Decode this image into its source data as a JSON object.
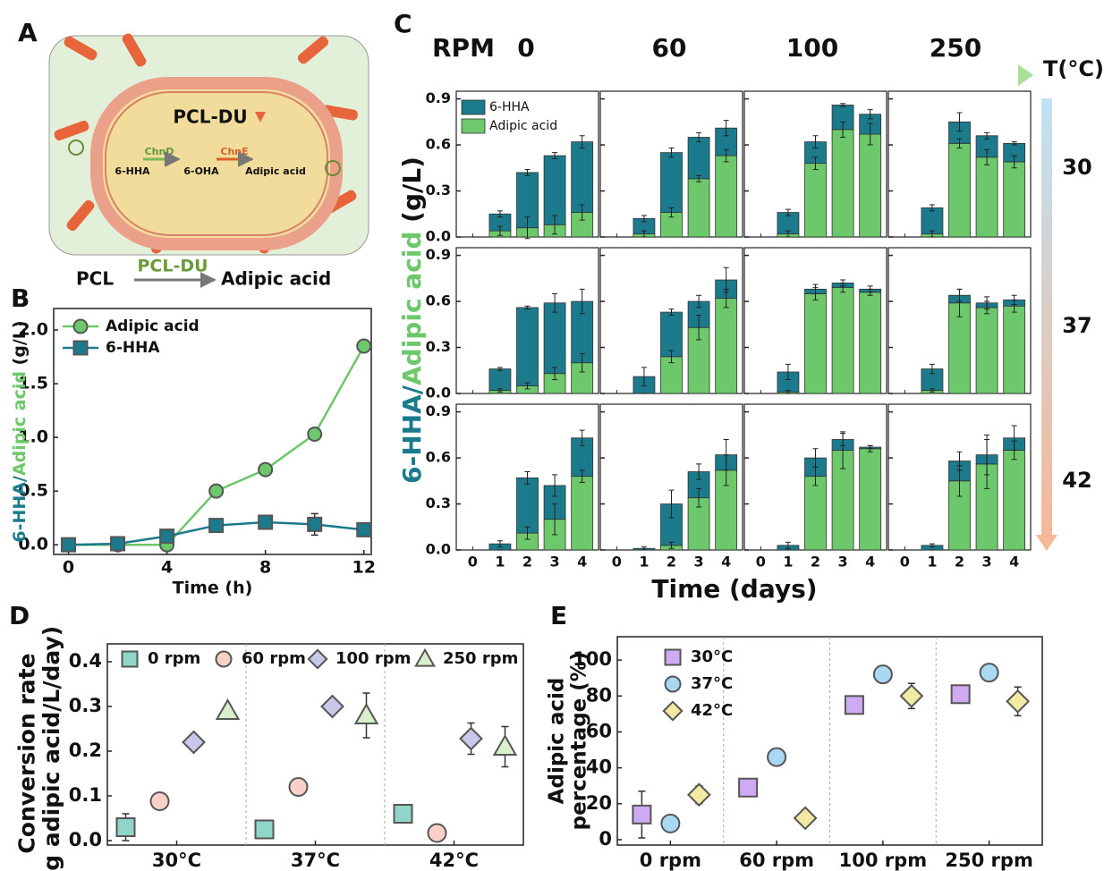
{
  "diagram": {
    "label": "A",
    "enzyme": "PCL-DU",
    "enzyme_1": "ChnD",
    "enzyme_2": "ChnE",
    "compounds": [
      "6-HHA",
      "6-OHA",
      "Adipic acid"
    ],
    "reaction": {
      "substrate": "PCL",
      "catalyst": "PCL-DU",
      "product": "Adipic acid"
    }
  },
  "chart_data": [
    {
      "type": "line",
      "label": "B",
      "xlabel": "Time (h)",
      "ylabel": [
        {
          "text": "6-HHA",
          "color": "#1b7a8c"
        },
        {
          "text": "/",
          "color": "#1b7a8c"
        },
        {
          "text": "Adipic acid",
          "color": "#6cc86a"
        },
        {
          "text": " (g/L)",
          "color": "#111111"
        }
      ],
      "x": [
        0,
        2,
        4,
        6,
        8,
        10,
        12
      ],
      "xlim": [
        -0.6,
        12.3
      ],
      "xticks": [
        0,
        4,
        8,
        12
      ],
      "ylim": [
        -0.09,
        2.2
      ],
      "yticks": [
        {
          "value": 0,
          "label": "0.0"
        },
        {
          "value": 0.5,
          "label": "0.5"
        },
        {
          "value": 1,
          "label": "1.0"
        },
        {
          "value": 1.5,
          "label": "1.5"
        },
        {
          "value": 2,
          "label": "2.0"
        }
      ],
      "legend": "upper left",
      "series": [
        {
          "name": "Adipic acid",
          "color": "#6cc86a",
          "marker": "circle",
          "values": [
            0,
            0,
            0,
            0.5,
            0.7,
            1.03,
            1.85
          ],
          "errors": [
            0.02,
            0.05,
            0.03,
            0.05,
            0.03,
            0.05,
            0.03
          ]
        },
        {
          "name": "6-HHA",
          "color": "#1b7a8c",
          "marker": "square",
          "values": [
            0,
            0.01,
            0.08,
            0.18,
            0.21,
            0.19,
            0.14
          ],
          "errors": [
            0.02,
            0.05,
            0.05,
            0.06,
            0.04,
            0.1,
            0.06
          ]
        }
      ]
    },
    {
      "type": "stacked_bar_grid",
      "label": "C",
      "xlabel": "Time (days)",
      "ylabel": [
        {
          "text": "6-HHA",
          "color": "#1b7a8c"
        },
        {
          "text": "/",
          "color": "#1b7a8c"
        },
        {
          "text": "Adipic acid",
          "color": "#6cc86a"
        },
        {
          "text": " (g/L)",
          "color": "#111111"
        }
      ],
      "column_title": "RPM",
      "columns": [
        "0",
        "60",
        "100",
        "250"
      ],
      "row_title": "T(°C)",
      "rows": [
        "30",
        "37",
        "42"
      ],
      "x": [
        0,
        1,
        2,
        3,
        4
      ],
      "xlim": [
        -0.6,
        4.6
      ],
      "xticks": [
        0,
        1,
        2,
        3,
        4
      ],
      "ylim": [
        0,
        0.95
      ],
      "yticks": [
        {
          "value": 0,
          "label": "0.0"
        },
        {
          "value": 0.3,
          "label": "0.3"
        },
        {
          "value": 0.6,
          "label": "0.6"
        },
        {
          "value": 0.9,
          "label": "0.9"
        }
      ],
      "legend": "upper left",
      "series": [
        {
          "name": "6-HHA",
          "color": "#1b7a8c"
        },
        {
          "name": "Adipic acid",
          "color": "#6cc86a"
        }
      ],
      "panels": [
        {
          "series": [
            {
              "values": [
                0,
                0.11,
                0.36,
                0.45,
                0.46
              ],
              "errors": [
                0,
                0.02,
                0.02,
                0.02,
                0.04
              ]
            },
            {
              "values": [
                0,
                0.04,
                0.06,
                0.08,
                0.16
              ],
              "errors": [
                0,
                0.03,
                0.07,
                0.06,
                0.05
              ]
            }
          ]
        },
        {
          "series": [
            {
              "values": [
                0,
                0.1,
                0.39,
                0.27,
                0.18
              ],
              "errors": [
                0,
                0.02,
                0.03,
                0.03,
                0.05
              ]
            },
            {
              "values": [
                0,
                0.02,
                0.16,
                0.38,
                0.53
              ],
              "errors": [
                0,
                0.02,
                0.03,
                0.02,
                0.04
              ]
            }
          ]
        },
        {
          "series": [
            {
              "values": [
                0,
                0.14,
                0.14,
                0.16,
                0.13
              ],
              "errors": [
                0,
                0.02,
                0.04,
                0.01,
                0.03
              ]
            },
            {
              "values": [
                0,
                0.02,
                0.48,
                0.7,
                0.67
              ],
              "errors": [
                0,
                0.02,
                0.04,
                0.05,
                0.07
              ]
            }
          ]
        },
        {
          "series": [
            {
              "values": [
                0,
                0.17,
                0.14,
                0.14,
                0.12
              ],
              "errors": [
                0,
                0.02,
                0.06,
                0.02,
                0.01
              ]
            },
            {
              "values": [
                0,
                0.02,
                0.61,
                0.52,
                0.49
              ],
              "errors": [
                0,
                0.02,
                0.03,
                0.05,
                0.04
              ]
            }
          ]
        },
        {
          "series": [
            {
              "values": [
                0,
                0.14,
                0.51,
                0.46,
                0.4
              ],
              "errors": [
                0,
                0.01,
                0.01,
                0.06,
                0.08
              ]
            },
            {
              "values": [
                0,
                0.02,
                0.05,
                0.13,
                0.2
              ],
              "errors": [
                0,
                0.01,
                0.02,
                0.04,
                0.06
              ]
            }
          ]
        },
        {
          "series": [
            {
              "values": [
                0,
                0.11,
                0.29,
                0.17,
                0.12
              ],
              "errors": [
                0,
                0.06,
                0.02,
                0.04,
                0.08
              ]
            },
            {
              "values": [
                0,
                0,
                0.24,
                0.43,
                0.62
              ],
              "errors": [
                0,
                0,
                0.04,
                0.08,
                0.06
              ]
            }
          ]
        },
        {
          "series": [
            {
              "values": [
                0,
                0.13,
                0.03,
                0.03,
                0.02
              ],
              "errors": [
                0,
                0.05,
                0.03,
                0.02,
                0.02
              ]
            },
            {
              "values": [
                0,
                0.01,
                0.65,
                0.69,
                0.66
              ],
              "errors": [
                0,
                0.01,
                0.04,
                0.03,
                0.02
              ]
            }
          ]
        },
        {
          "series": [
            {
              "values": [
                0,
                0.14,
                0.05,
                0.03,
                0.04
              ],
              "errors": [
                0,
                0.03,
                0.04,
                0.04,
                0.03
              ]
            },
            {
              "values": [
                0,
                0.02,
                0.59,
                0.56,
                0.57
              ],
              "errors": [
                0,
                0.01,
                0.09,
                0.04,
                0.04
              ]
            }
          ]
        },
        {
          "series": [
            {
              "values": [
                0,
                0.04,
                0.36,
                0.22,
                0.25
              ],
              "errors": [
                0,
                0.02,
                0.04,
                0.07,
                0.05
              ]
            },
            {
              "values": [
                0,
                0,
                0.11,
                0.2,
                0.48
              ],
              "errors": [
                0,
                0,
                0.04,
                0.1,
                0.04
              ]
            }
          ]
        },
        {
          "series": [
            {
              "values": [
                0,
                0.01,
                0.27,
                0.17,
                0.1
              ],
              "errors": [
                0,
                0.01,
                0.09,
                0.05,
                0.1
              ]
            },
            {
              "values": [
                0,
                0,
                0.03,
                0.34,
                0.52
              ],
              "errors": [
                0,
                0,
                0.02,
                0.06,
                0.1
              ]
            }
          ]
        },
        {
          "series": [
            {
              "values": [
                0,
                0.03,
                0.12,
                0.07,
                0.01
              ],
              "errors": [
                0,
                0.02,
                0.06,
                0.04,
                0.01
              ]
            },
            {
              "values": [
                0,
                0,
                0.48,
                0.65,
                0.66
              ],
              "errors": [
                0,
                0,
                0.06,
                0.12,
                0.02
              ]
            }
          ]
        },
        {
          "series": [
            {
              "values": [
                0,
                0.03,
                0.13,
                0.06,
                0.08
              ],
              "errors": [
                0,
                0.01,
                0.06,
                0.13,
                0.08
              ]
            },
            {
              "values": [
                0,
                0,
                0.45,
                0.56,
                0.65
              ],
              "errors": [
                0,
                0,
                0.1,
                0.16,
                0.06
              ]
            }
          ]
        }
      ]
    },
    {
      "type": "scatter",
      "label": "D",
      "ylabel": [
        "Conversion rate",
        "(g adipic acid/L/day)"
      ],
      "categories": [
        "30°C",
        "37°C",
        "42°C"
      ],
      "ylim": [
        -0.01,
        0.44
      ],
      "yticks": [
        {
          "value": 0,
          "label": "0.0"
        },
        0.1,
        0.2,
        0.3,
        0.4
      ],
      "legend": "top",
      "series": [
        {
          "name": "0 rpm",
          "color": "#8fd6c8",
          "marker": "square",
          "values": [
            0.03,
            0.025,
            0.06
          ],
          "errors": [
            0.03,
            0.02,
            0.01
          ]
        },
        {
          "name": "60 rpm",
          "color": "#f8d0c8",
          "marker": "circle",
          "values": [
            0.088,
            0.12,
            0.017
          ],
          "errors": [
            0.01,
            0.005,
            0.015
          ]
        },
        {
          "name": "100 rpm",
          "color": "#c8c8ea",
          "marker": "diamond",
          "values": [
            0.22,
            0.3,
            0.228
          ],
          "errors": [
            0.01,
            0.01,
            0.035
          ]
        },
        {
          "name": "250 rpm",
          "color": "#daf0cc",
          "marker": "triangle",
          "values": [
            0.29,
            0.28,
            0.21
          ],
          "errors": [
            0.01,
            0.05,
            0.045
          ]
        }
      ]
    },
    {
      "type": "scatter",
      "label": "E",
      "ylabel": [
        "Adipic acid",
        "percentage (%)"
      ],
      "categories": [
        "0 rpm",
        "60 rpm",
        "100 rpm",
        "250 rpm"
      ],
      "ylim": [
        -3,
        113
      ],
      "yticks": [
        0,
        20,
        40,
        60,
        80,
        100
      ],
      "legend": "upper left",
      "series": [
        {
          "name": "30°C",
          "color": "#cdaaf2",
          "marker": "square",
          "values": [
            14,
            29,
            75,
            81
          ],
          "errors": [
            13,
            2,
            3,
            5
          ]
        },
        {
          "name": "37°C",
          "color": "#a9d9f2",
          "marker": "circle",
          "values": [
            9,
            46,
            92,
            93
          ],
          "errors": [
            3,
            2,
            2,
            3
          ]
        },
        {
          "name": "42°C",
          "color": "#f2eaa4",
          "marker": "diamond",
          "values": [
            25,
            12,
            80,
            77
          ],
          "errors": [
            5,
            3,
            7,
            8
          ]
        }
      ]
    }
  ]
}
